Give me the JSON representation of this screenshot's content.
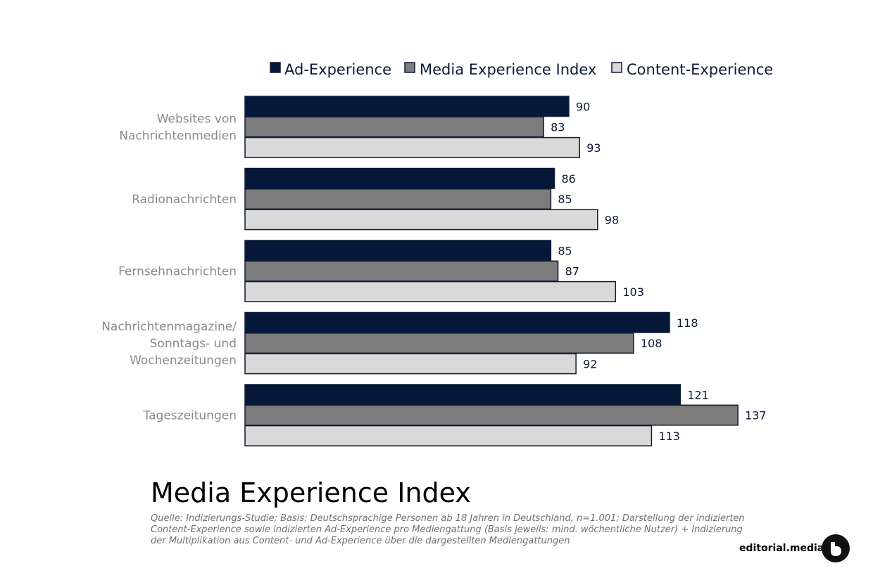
{
  "title": "Media Experience Index",
  "source": "Quelle: Indizierungs-Studie; Basis: Deutschsprachige Personen ab 18 Jahren in Deutschland, n=1.001; Darstellung der indizierten Content-Experience sowie indizierten Ad-Experience pro Mediengattung (Basis jeweils: mind. wöchentliche Nutzer) + Indizierung der Multiplikation aus Content- und Ad-Experience über die dargestellten Mediengattungen",
  "brand": "editorial.media",
  "chart_data": {
    "type": "bar",
    "orientation": "horizontal",
    "grid": false,
    "legend_position": "top",
    "categories": [
      [
        "Websites von",
        "Nachrichtenmedien"
      ],
      [
        "Radionachrichten"
      ],
      [
        "Fernsehnachrichten"
      ],
      [
        "Nachrichtenmagazine/",
        "Sonntags- und",
        "Wochenzeitungen"
      ],
      [
        "Tageszeitungen"
      ]
    ],
    "series": [
      {
        "name": "Ad-Experience",
        "color": "#06183a",
        "values": [
          90,
          86,
          85,
          118,
          121
        ]
      },
      {
        "name": "Media Experience Index",
        "color": "#7c7c7c",
        "values": [
          83,
          85,
          87,
          108,
          137
        ]
      },
      {
        "name": "Content-Experience",
        "color": "#d9d9d9",
        "values": [
          93,
          98,
          103,
          92,
          113
        ]
      }
    ],
    "xlim": [
      0,
      137
    ]
  }
}
